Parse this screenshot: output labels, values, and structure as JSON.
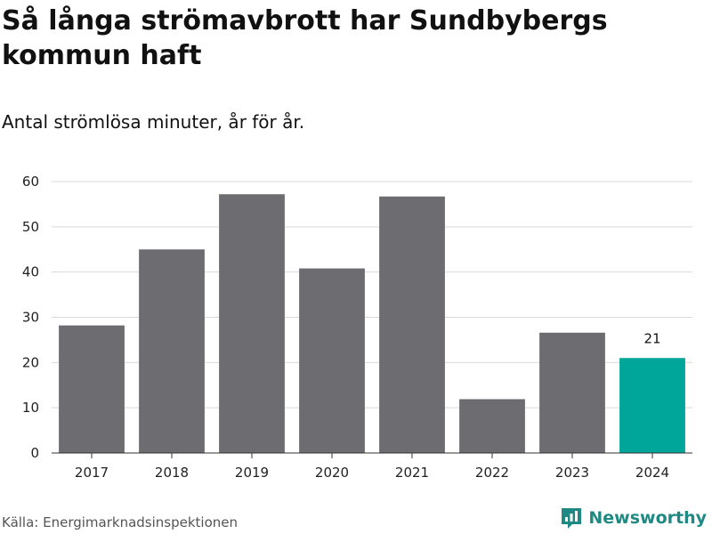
{
  "title": "Så långa strömavbrott har Sundbybergs kommun haft",
  "subtitle": "Antal strömlösa minuter, år för år.",
  "source": "Källa: Energimarknadsinspektionen",
  "brand": "Newsworthy",
  "colors": {
    "bar": "#6d6c71",
    "highlight": "#00a69a",
    "grid": "#d9d9d9",
    "brand": "#1f8a83"
  },
  "chart_data": {
    "type": "bar",
    "title": "Så långa strömavbrott har Sundbybergs kommun haft",
    "subtitle": "Antal strömlösa minuter, år för år.",
    "xlabel": "",
    "ylabel": "",
    "categories": [
      "2017",
      "2018",
      "2019",
      "2020",
      "2021",
      "2022",
      "2023",
      "2024"
    ],
    "values": [
      28.2,
      45,
      57.2,
      40.8,
      56.7,
      11.9,
      26.6,
      21
    ],
    "ylim": [
      0,
      60
    ],
    "yticks": [
      0,
      10,
      20,
      30,
      40,
      50,
      60
    ],
    "highlight_index": 7,
    "data_labels": [
      {
        "index": 7,
        "text": "21"
      }
    ],
    "grid": true
  }
}
